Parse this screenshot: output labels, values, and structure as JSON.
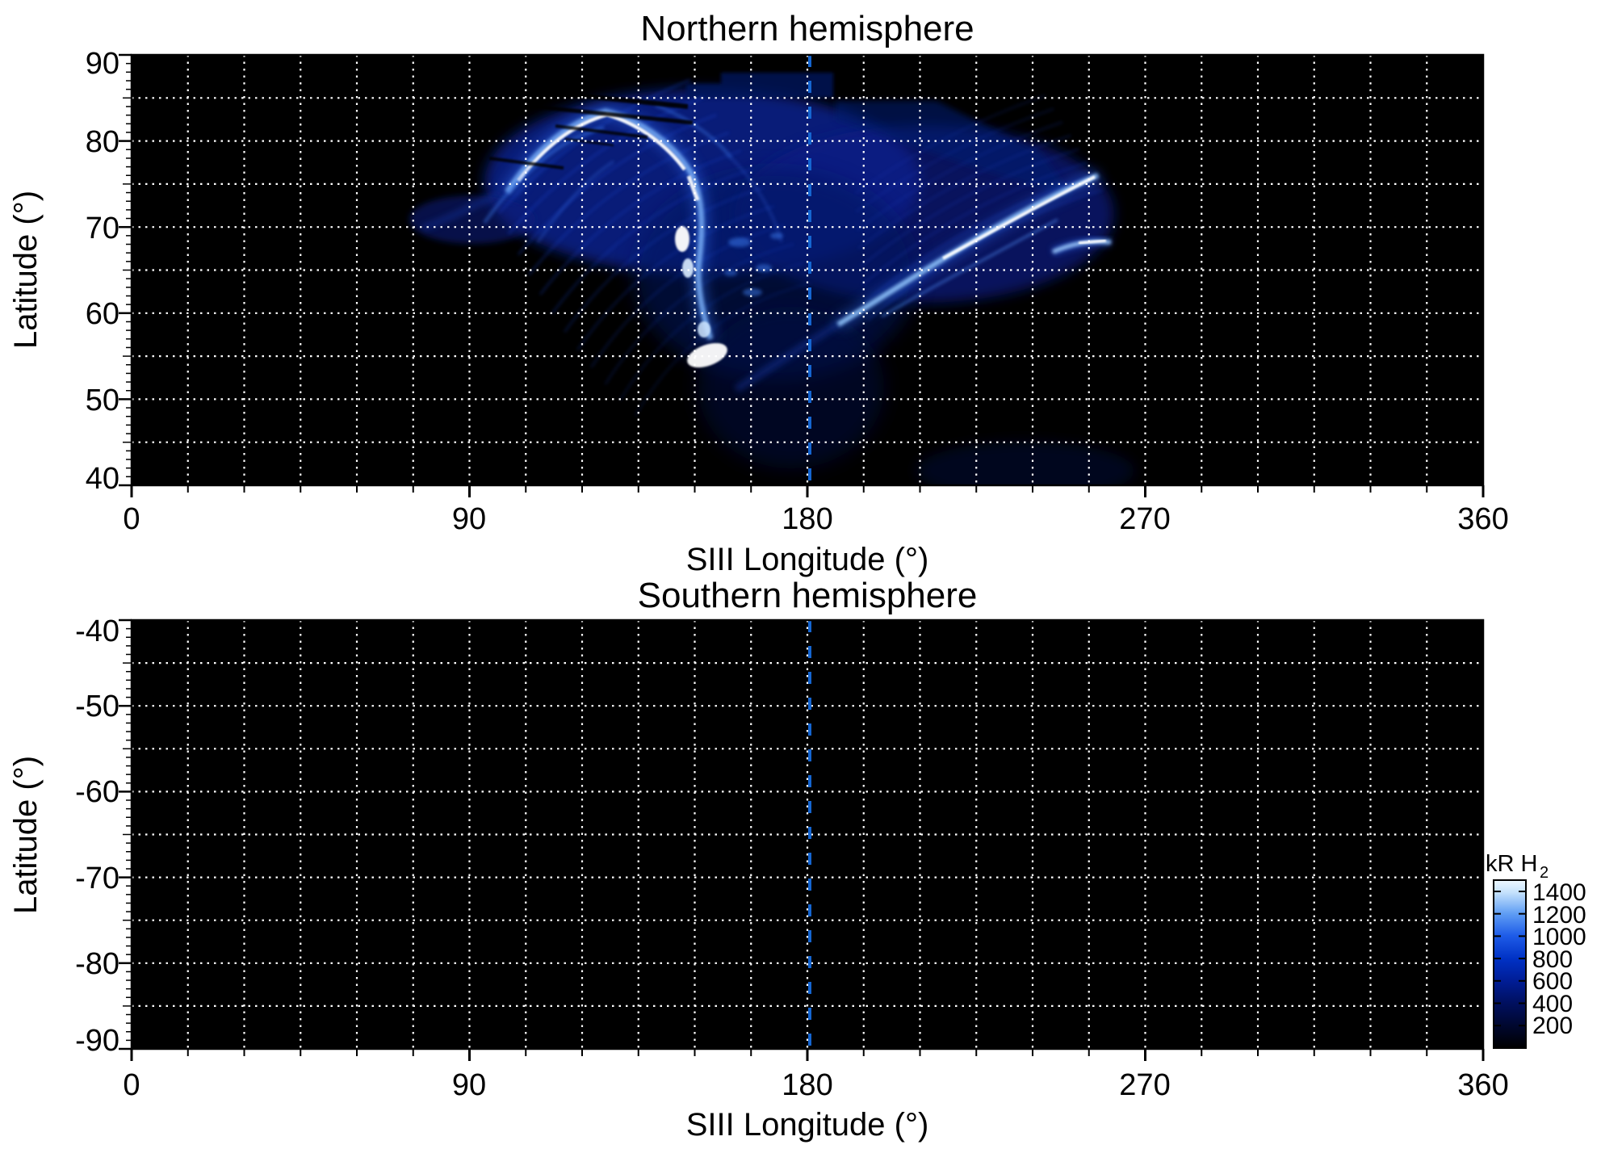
{
  "north": {
    "title": "Northern hemisphere",
    "xlabel": "SIII Longitude (°)",
    "ylabel": "Latitude (°)",
    "xticks": [
      "0",
      "90",
      "180",
      "270",
      "360"
    ],
    "yticks": [
      "90",
      "80",
      "70",
      "60",
      "50",
      "40"
    ]
  },
  "south": {
    "title": "Southern hemisphere",
    "xlabel": "SIII Longitude (°)",
    "ylabel": "Latitude (°)",
    "xticks": [
      "0",
      "90",
      "180",
      "270",
      "360"
    ],
    "yticks": [
      "-40",
      "-50",
      "-60",
      "-70",
      "-80",
      "-90"
    ]
  },
  "colorbar": {
    "title_main": "kR H",
    "title_sub": "2",
    "ticks": [
      "1400",
      "1200",
      "1000",
      "800",
      "600",
      "400",
      "200"
    ]
  },
  "colors": {
    "background": "#ffffff",
    "panel_bg": "#000000",
    "grid": "#ffffff",
    "reference_line": "#1565d0",
    "aurora_bright": "#ffffff",
    "aurora_mid": "#2e6cf0",
    "aurora_faint": "#071f85"
  },
  "chart_data": {
    "type": "heatmap",
    "colormap": "black → blue → white intensity map",
    "colorbar": {
      "label": "kR H2",
      "tick_values": [
        200,
        400,
        600,
        800,
        1000,
        1200,
        1400
      ],
      "range": [
        0,
        1500
      ],
      "position": "right of southern panel"
    },
    "panels": [
      {
        "title": "Northern hemisphere",
        "xlabel": "SIII Longitude (°)",
        "ylabel": "Latitude (°)",
        "xlim": [
          0,
          360
        ],
        "ylim": [
          40,
          90
        ],
        "xticks": [
          0,
          90,
          180,
          270,
          360
        ],
        "yticks": [
          40,
          50,
          60,
          70,
          80,
          90
        ],
        "grid": {
          "x_spacing_deg": 15,
          "y_spacing_deg": 5,
          "style": "white dotted"
        },
        "reference_line": {
          "x_deg": 180,
          "style": "blue dashed vertical"
        },
        "features": [
          {
            "name": "main auroral arc",
            "path_lon_lat": [
              [
                97,
                71
              ],
              [
                112,
                78
              ],
              [
                124,
                82
              ],
              [
                133,
                80
              ],
              [
                140,
                76
              ],
              [
                145,
                71
              ],
              [
                147,
                65
              ],
              [
                149,
                60
              ],
              [
                153,
                56
              ]
            ],
            "peak_kR": 1400
          },
          {
            "name": "bright dawn-side arc",
            "path_lon_lat": [
              [
                189,
                61
              ],
              [
                205,
                66
              ],
              [
                224,
                71
              ],
              [
                240,
                74
              ],
              [
                257,
                76
              ]
            ],
            "peak_kR": 1400
          },
          {
            "name": "secondary short arc",
            "path_lon_lat": [
              [
                246,
                66.5
              ],
              [
                260,
                68
              ]
            ],
            "peak_kR": 1100
          },
          {
            "name": "bright low-latitude spot",
            "lon": 151,
            "lat": 56,
            "peak_kR": 1450
          },
          {
            "name": "diffuse striated emission fan",
            "lon_extent": [
              95,
              255
            ],
            "lat_extent": [
              55,
              87
            ],
            "kR_range": [
              50,
              500
            ]
          },
          {
            "name": "polar cap faint emission",
            "lon_extent": [
              148,
              188
            ],
            "lat_extent": [
              85,
              88
            ],
            "kR_range": [
              50,
              200
            ]
          }
        ]
      },
      {
        "title": "Southern hemisphere",
        "xlabel": "SIII Longitude (°)",
        "ylabel": "Latitude (°)",
        "xlim": [
          0,
          360
        ],
        "ylim": [
          -90,
          -40
        ],
        "xticks": [
          0,
          90,
          180,
          270,
          360
        ],
        "yticks": [
          -90,
          -80,
          -70,
          -60,
          -50,
          -40
        ],
        "grid": {
          "x_spacing_deg": 15,
          "y_spacing_deg": 5,
          "style": "white dotted"
        },
        "reference_line": {
          "x_deg": 180,
          "style": "blue dashed vertical"
        },
        "features": []
      }
    ]
  }
}
